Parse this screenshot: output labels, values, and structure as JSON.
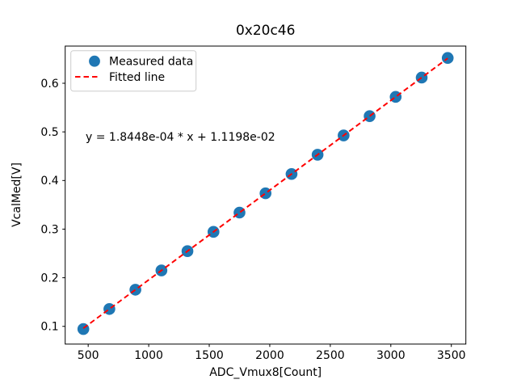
{
  "figure": {
    "title": "0x20c46",
    "xlabel": "ADC_Vmux8[Count]",
    "ylabel": "VcalMed[V]",
    "annotation": "y = 1.8448e-04 * x + 1.1198e-02",
    "legend": {
      "items": [
        {
          "label": "Measured data",
          "marker": "circle-marker",
          "color": "#1f77b4"
        },
        {
          "label": "Fitted line",
          "marker": "dashed-line-marker",
          "color": "#ff0000"
        }
      ]
    }
  },
  "chart_data": {
    "type": "scatter",
    "title": "0x20c46",
    "xlabel": "ADC_Vmux8[Count]",
    "ylabel": "VcalMed[V]",
    "xlim": [
      310,
      3620
    ],
    "ylim": [
      0.0635,
      0.6765
    ],
    "x_ticks": [
      500,
      1000,
      1500,
      2000,
      2500,
      3000,
      3500
    ],
    "x_tick_labels": [
      "500",
      "1000",
      "1500",
      "2000",
      "2500",
      "3000",
      "3500"
    ],
    "y_ticks": [
      0.1,
      0.2,
      0.3,
      0.4,
      0.5,
      0.6
    ],
    "y_tick_labels": [
      "0.1",
      "0.2",
      "0.3",
      "0.4",
      "0.5",
      "0.6"
    ],
    "grid": false,
    "legend_position": "upper left",
    "series": [
      {
        "name": "Measured data",
        "type": "scatter",
        "color": "#1f77b4",
        "marker_size": 7.3,
        "x": [
          460,
          675,
          890,
          1105,
          1320,
          1535,
          1750,
          1965,
          2180,
          2395,
          2610,
          2825,
          3040,
          3255,
          3470
        ],
        "y": [
          0.0945,
          0.1357,
          0.1754,
          0.215,
          0.2547,
          0.2944,
          0.334,
          0.3737,
          0.4134,
          0.453,
          0.4927,
          0.5324,
          0.572,
          0.6117,
          0.652
        ]
      },
      {
        "name": "Fitted line",
        "type": "line",
        "line_style": "dashed",
        "color": "#ff0000",
        "slope": 0.00018448,
        "intercept": 0.011198,
        "x_start": 460,
        "x_end": 3470
      }
    ],
    "annotation": {
      "text": "y = 1.8448e-04 * x + 1.1198e-02",
      "x": 480,
      "y": 0.49
    }
  }
}
